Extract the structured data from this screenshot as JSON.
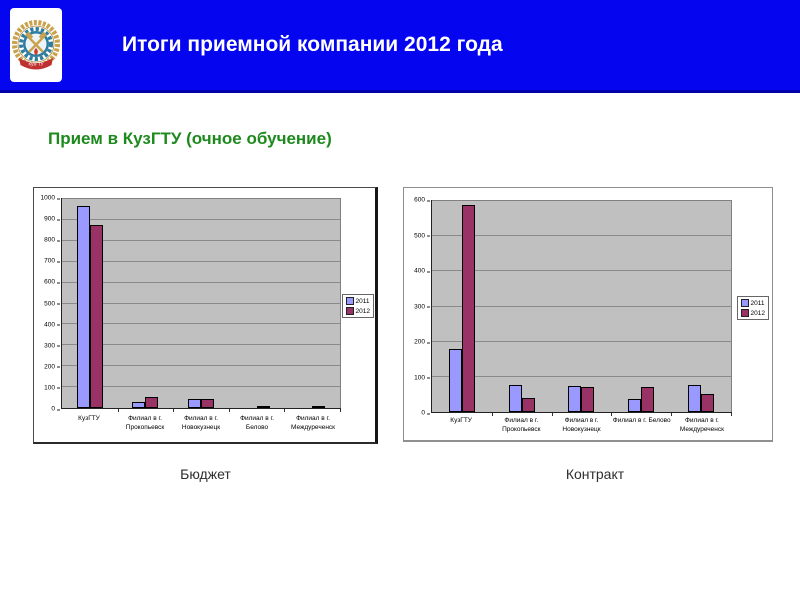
{
  "header": {
    "title": "Итоги приемной компании 2012 года",
    "banner_color": "#0505F0",
    "banner_edge_color": "#0000A8",
    "title_color": "#FFFFFF",
    "logo": {
      "name": "Эмблема КузГТУ",
      "ribbon_text": "КузГТУ"
    }
  },
  "page": {
    "subtitle": "Прием в КузГТУ (очное обучение)",
    "subtitle_color": "#1E8A1E",
    "background": "#FFFFFF"
  },
  "chart_data": [
    {
      "type": "bar",
      "title": "Бюджет",
      "categories": [
        "КузГТУ",
        "Филиал в г. Прокопьевск",
        "Филиал в г. Новокузнецк",
        "Филиал в г. Белово",
        "Филиал в г. Междуреченск"
      ],
      "categories_lines": [
        [
          "КузГТУ"
        ],
        [
          "Филиал в г.",
          "Прокопьевск"
        ],
        [
          "Филиал в г.",
          "Новокузнецк"
        ],
        [
          "Филиал в г.",
          "Белово"
        ],
        [
          "Филиал в г.",
          "Междуреченск"
        ]
      ],
      "series": [
        {
          "name": "2011",
          "color": "#9999FF",
          "values": [
            965,
            30,
            45,
            0,
            0
          ]
        },
        {
          "name": "2012",
          "color": "#993366",
          "values": [
            875,
            55,
            45,
            12,
            12
          ]
        }
      ],
      "ylim": [
        0,
        1000
      ],
      "ytick_step": 100,
      "grid": true,
      "legend_position": "right",
      "plot_bg": "#C0C0C0"
    },
    {
      "type": "bar",
      "title": "Контракт",
      "categories": [
        "КузГТУ",
        "Филиал в г. Прокопьевск",
        "Филиал в г. Новокузнецк",
        "Филиал в г. Белово",
        "Филиал в г. Междуреченск"
      ],
      "categories_lines": [
        [
          "КузГТУ"
        ],
        [
          "Филиал в г.",
          "Прокопьевск"
        ],
        [
          "Филиал в г.",
          "Новокузнецк"
        ],
        [
          "Филиал в г. Белово"
        ],
        [
          "Филиал в г.",
          "Междуреченск"
        ]
      ],
      "series": [
        {
          "name": "2011",
          "color": "#9999FF",
          "values": [
            180,
            77,
            74,
            37,
            77
          ]
        },
        {
          "name": "2012",
          "color": "#993366",
          "values": [
            590,
            40,
            72,
            72,
            52
          ]
        }
      ],
      "ylim": [
        0,
        600
      ],
      "ytick_step": 100,
      "grid": true,
      "legend_position": "right",
      "plot_bg": "#C0C0C0"
    }
  ]
}
